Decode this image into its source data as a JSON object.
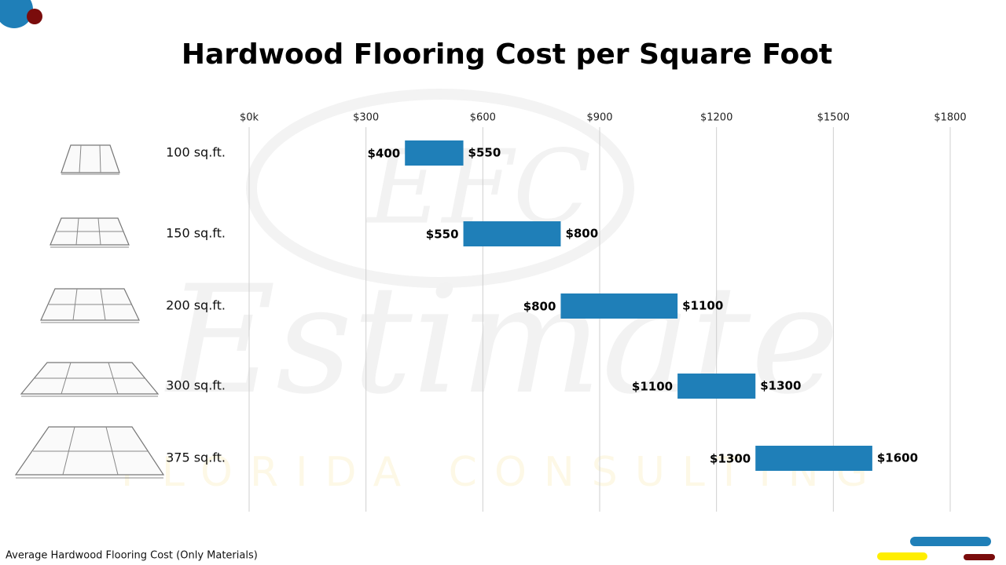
{
  "chart_data": {
    "type": "range_bar",
    "title": "Hardwood Flooring Cost per Square Foot",
    "categories": [
      "100 sq.ft.",
      "150 sq.ft.",
      "200 sq.ft.",
      "300 sq.ft.",
      "375 sq.ft."
    ],
    "values": [
      [
        400,
        550
      ],
      [
        550,
        800
      ],
      [
        800,
        1100
      ],
      [
        1100,
        1300
      ],
      [
        1300,
        1600
      ]
    ],
    "value_labels": [
      [
        "$400",
        "$550"
      ],
      [
        "$550",
        "$800"
      ],
      [
        "$800",
        "$1100"
      ],
      [
        "$1100",
        "$1300"
      ],
      [
        "$1300",
        "$1600"
      ]
    ],
    "color": "#1f7fb8",
    "xlim": [
      0,
      1800
    ],
    "xticks": [
      {
        "value": 0,
        "label": "$0k"
      },
      {
        "value": 300,
        "label": "$300"
      },
      {
        "value": 600,
        "label": "$600"
      },
      {
        "value": 900,
        "label": "$900"
      },
      {
        "value": 1200,
        "label": "$1200"
      },
      {
        "value": 1500,
        "label": "$1500"
      },
      {
        "value": 1800,
        "label": "$1800"
      }
    ],
    "grid": true,
    "footnote": "Average Hardwood Flooring Cost (Only Materials)",
    "watermark": [
      "EFC",
      "Estimate",
      "FLORIDA CONSULTING"
    ]
  }
}
